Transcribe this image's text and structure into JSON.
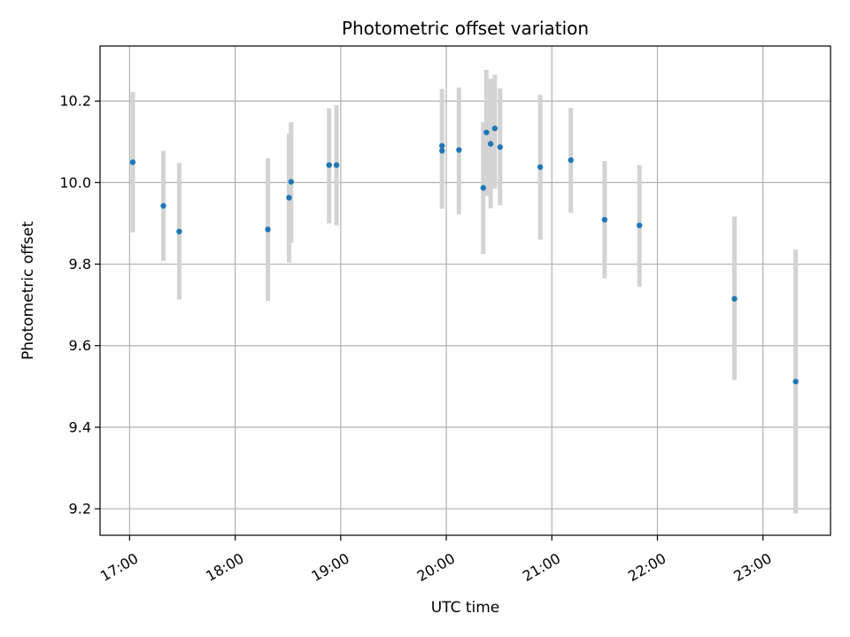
{
  "chart_data": {
    "type": "scatter",
    "title": "Photometric offset variation",
    "xlabel": "UTC time",
    "ylabel": "Photometric offset",
    "x_unit": "hours UTC",
    "xlim": [
      16.72,
      23.64
    ],
    "ylim": [
      9.135,
      10.335
    ],
    "x_ticks": [
      {
        "value": 17,
        "label": "17:00"
      },
      {
        "value": 18,
        "label": "18:00"
      },
      {
        "value": 19,
        "label": "19:00"
      },
      {
        "value": 20,
        "label": "20:00"
      },
      {
        "value": 21,
        "label": "21:00"
      },
      {
        "value": 22,
        "label": "22:00"
      },
      {
        "value": 23,
        "label": "23:00"
      }
    ],
    "y_ticks": [
      {
        "value": 9.2,
        "label": "9.2"
      },
      {
        "value": 9.4,
        "label": "9.4"
      },
      {
        "value": 9.6,
        "label": "9.6"
      },
      {
        "value": 9.8,
        "label": "9.8"
      },
      {
        "value": 10.0,
        "label": "10.0"
      },
      {
        "value": 10.2,
        "label": "10.2"
      }
    ],
    "grid": true,
    "point_color": "#1f77b4",
    "errorbar_color": "#d3d3d3",
    "points": [
      {
        "x": 17.03,
        "y": 10.05,
        "err_low": 9.878,
        "err_high": 10.222
      },
      {
        "x": 17.32,
        "y": 9.943,
        "err_low": 9.808,
        "err_high": 10.078
      },
      {
        "x": 17.47,
        "y": 9.88,
        "err_low": 9.713,
        "err_high": 10.048
      },
      {
        "x": 18.31,
        "y": 9.885,
        "err_low": 9.71,
        "err_high": 10.06
      },
      {
        "x": 18.51,
        "y": 9.963,
        "err_low": 9.804,
        "err_high": 10.12
      },
      {
        "x": 18.53,
        "y": 10.002,
        "err_low": 9.852,
        "err_high": 10.148
      },
      {
        "x": 18.89,
        "y": 10.043,
        "err_low": 9.9,
        "err_high": 10.182
      },
      {
        "x": 18.96,
        "y": 10.043,
        "err_low": 9.895,
        "err_high": 10.19
      },
      {
        "x": 19.96,
        "y": 10.078,
        "err_low": 9.936,
        "err_high": 10.23
      },
      {
        "x": 19.96,
        "y": 10.09,
        "err_low": 9.94,
        "err_high": 10.22
      },
      {
        "x": 20.12,
        "y": 10.08,
        "err_low": 9.922,
        "err_high": 10.233
      },
      {
        "x": 20.35,
        "y": 9.987,
        "err_low": 9.825,
        "err_high": 10.148
      },
      {
        "x": 20.38,
        "y": 10.123,
        "err_low": 9.967,
        "err_high": 10.277
      },
      {
        "x": 20.42,
        "y": 10.095,
        "err_low": 9.937,
        "err_high": 10.255
      },
      {
        "x": 20.46,
        "y": 10.133,
        "err_low": 9.985,
        "err_high": 10.265
      },
      {
        "x": 20.51,
        "y": 10.087,
        "err_low": 9.944,
        "err_high": 10.231
      },
      {
        "x": 20.89,
        "y": 10.038,
        "err_low": 9.86,
        "err_high": 10.215
      },
      {
        "x": 21.18,
        "y": 10.055,
        "err_low": 9.926,
        "err_high": 10.183
      },
      {
        "x": 21.5,
        "y": 9.909,
        "err_low": 9.765,
        "err_high": 10.053
      },
      {
        "x": 21.83,
        "y": 9.895,
        "err_low": 9.745,
        "err_high": 10.043
      },
      {
        "x": 22.73,
        "y": 9.715,
        "err_low": 9.516,
        "err_high": 9.917
      },
      {
        "x": 23.31,
        "y": 9.512,
        "err_low": 9.188,
        "err_high": 9.836
      }
    ]
  }
}
